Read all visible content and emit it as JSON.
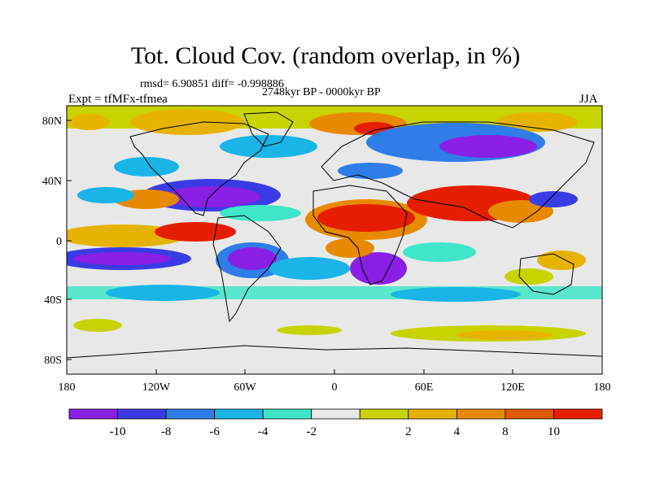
{
  "title": "Tot. Cloud Cov. (random overlap, in %)",
  "stats": "rmsd= 6.90851 diff= -0.998886",
  "period": "2748kyr BP - 0000kyr BP",
  "experiment": "Expt = tfMFx-tfmea",
  "season": "JJA",
  "map": {
    "lat_ticks": [
      "80N",
      "40N",
      "0",
      "40S",
      "80S"
    ],
    "lon_ticks": [
      "180",
      "120W",
      "60W",
      "0",
      "60E",
      "120E",
      "180"
    ]
  },
  "colorbar": {
    "colors": [
      "#8a1fe6",
      "#3b3be6",
      "#2f7de8",
      "#1ab4e6",
      "#3fe6c8",
      "#e8e8e8",
      "#c8d400",
      "#e6b400",
      "#e88a00",
      "#e05a00",
      "#e61e00"
    ],
    "labels": [
      "-10",
      "-8",
      "-6",
      "-4",
      "-2",
      "2",
      "4",
      "8",
      "10"
    ]
  }
}
